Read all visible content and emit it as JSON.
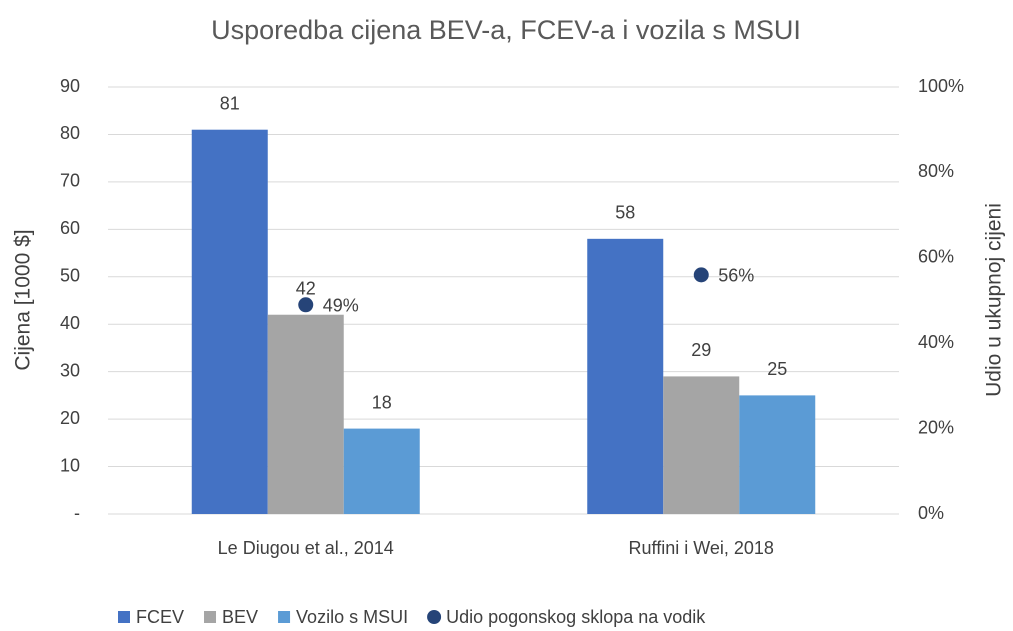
{
  "chart_data": {
    "type": "bar",
    "title": "Usporedba cijena BEV-a, FCEV-a i vozila s MSUI",
    "ylabel": "Cijena [1000 $]",
    "y2label": "Udio u ukupnoj cijeni",
    "categories": [
      "Le Diugou et al., 2014",
      "Ruffini i Wei, 2018"
    ],
    "series": [
      {
        "name": "FCEV",
        "color": "#4472c4",
        "values": [
          81,
          58
        ]
      },
      {
        "name": "BEV",
        "color": "#a5a5a5",
        "values": [
          42,
          29
        ]
      },
      {
        "name": "Vozilo s MSUI",
        "color": "#5b9bd5",
        "values": [
          18,
          25
        ]
      },
      {
        "name": "Udio pogonskog sklopa na vodik",
        "color": "#264478",
        "type": "scatter",
        "axis": "y2",
        "values": [
          49,
          56
        ],
        "value_labels": [
          "49%",
          "56%"
        ]
      }
    ],
    "ylim": [
      0,
      90
    ],
    "yticks": [
      {
        "value": 0,
        "label": "-"
      },
      10,
      20,
      30,
      40,
      50,
      60,
      70,
      80,
      90
    ],
    "y2lim": [
      0,
      100
    ],
    "y2ticks": [
      {
        "value": 0,
        "label": "0%"
      },
      {
        "value": 20,
        "label": "20%"
      },
      {
        "value": 40,
        "label": "40%"
      },
      {
        "value": 60,
        "label": "60%"
      },
      {
        "value": 80,
        "label": "80%"
      },
      {
        "value": 100,
        "label": "100%"
      }
    ],
    "grid": true,
    "legend": "bottom"
  }
}
